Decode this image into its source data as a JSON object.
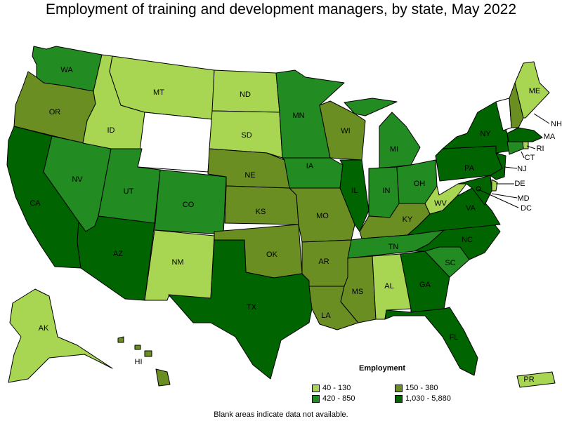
{
  "title": "Employment of training and development managers, by state, May 2022",
  "legend": {
    "title": "Employment",
    "items": [
      {
        "label": "40 - 130",
        "color": "#a8d653"
      },
      {
        "label": "150 - 380",
        "color": "#6b8e23"
      },
      {
        "label": "420 - 850",
        "color": "#228b22"
      },
      {
        "label": "1,030 - 5,880",
        "color": "#006400"
      }
    ]
  },
  "note": "Blank areas indicate data not available.",
  "colors": {
    "no_data": "#ffffff"
  },
  "states": {
    "WA": {
      "label": "WA",
      "cls": 2
    },
    "OR": {
      "label": "OR",
      "cls": 1
    },
    "CA": {
      "label": "CA",
      "cls": 3
    },
    "NV": {
      "label": "NV",
      "cls": 2
    },
    "ID": {
      "label": "ID",
      "cls": 0
    },
    "MT": {
      "label": "MT",
      "cls": 0
    },
    "WY": {
      "label": "",
      "cls": -1
    },
    "UT": {
      "label": "UT",
      "cls": 2
    },
    "AZ": {
      "label": "AZ",
      "cls": 3
    },
    "CO": {
      "label": "CO",
      "cls": 2
    },
    "NM": {
      "label": "NM",
      "cls": 0
    },
    "ND": {
      "label": "ND",
      "cls": 0
    },
    "SD": {
      "label": "SD",
      "cls": 0
    },
    "NE": {
      "label": "NE",
      "cls": 1
    },
    "KS": {
      "label": "KS",
      "cls": 1
    },
    "OK": {
      "label": "OK",
      "cls": 1
    },
    "TX": {
      "label": "TX",
      "cls": 3
    },
    "MN": {
      "label": "MN",
      "cls": 2
    },
    "IA": {
      "label": "IA",
      "cls": 2
    },
    "MO": {
      "label": "MO",
      "cls": 1
    },
    "AR": {
      "label": "AR",
      "cls": 1
    },
    "LA": {
      "label": "LA",
      "cls": 1
    },
    "WI": {
      "label": "WI",
      "cls": 1
    },
    "IL": {
      "label": "IL",
      "cls": 3
    },
    "MI": {
      "label": "MI",
      "cls": 2
    },
    "IN": {
      "label": "IN",
      "cls": 2
    },
    "OH": {
      "label": "OH",
      "cls": 2
    },
    "KY": {
      "label": "KY",
      "cls": 1
    },
    "TN": {
      "label": "TN",
      "cls": 2
    },
    "MS": {
      "label": "MS",
      "cls": 1
    },
    "AL": {
      "label": "AL",
      "cls": 0
    },
    "GA": {
      "label": "GA",
      "cls": 3
    },
    "FL": {
      "label": "FL",
      "cls": 3
    },
    "SC": {
      "label": "SC",
      "cls": 2
    },
    "NC": {
      "label": "NC",
      "cls": 3
    },
    "VA": {
      "label": "VA",
      "cls": 3
    },
    "WV": {
      "label": "WV",
      "cls": 0
    },
    "PA": {
      "label": "PA",
      "cls": 3
    },
    "NY": {
      "label": "NY",
      "cls": 3
    },
    "VT": {
      "label": "",
      "cls": -1
    },
    "NH": {
      "label": "NH",
      "cls": 1
    },
    "ME": {
      "label": "ME",
      "cls": 0
    },
    "MA": {
      "label": "MA",
      "cls": 3
    },
    "RI": {
      "label": "RI",
      "cls": 0
    },
    "CT": {
      "label": "CT",
      "cls": 2
    },
    "NJ": {
      "label": "NJ",
      "cls": 3
    },
    "DE": {
      "label": "DE",
      "cls": 0
    },
    "MD": {
      "label": "MD",
      "cls": 3
    },
    "DC": {
      "label": "DC",
      "cls": 3
    },
    "AK": {
      "label": "AK",
      "cls": 0
    },
    "HI": {
      "label": "HI",
      "cls": 1
    },
    "PR": {
      "label": "PR",
      "cls": 0
    }
  }
}
